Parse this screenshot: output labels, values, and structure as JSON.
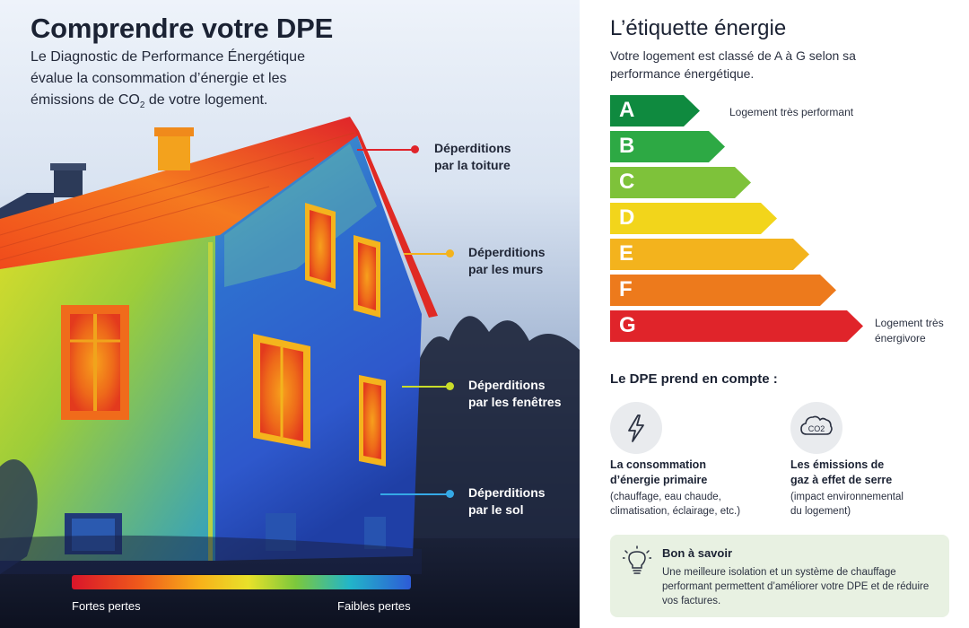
{
  "left": {
    "title": "Comprendre votre DPE",
    "intro_a": "Le Diagnostic de Performance Énergétique évalue la consommation d’énergie et les émissions de CO",
    "intro_sub": "2",
    "intro_b": " de votre logement.",
    "callouts": {
      "roof": [
        "Déperditions",
        "par la toiture"
      ],
      "walls": [
        "Déperditions",
        "par les murs"
      ],
      "windows": [
        "Déperditions",
        "par les fenêtres"
      ],
      "floor": [
        "Déperditions",
        "par le sol"
      ]
    },
    "scale": {
      "left": "Fortes pertes",
      "right": "Faibles pertes"
    }
  },
  "right": {
    "title": "L’étiquette énergie",
    "intro": "Votre logement est classé de A à G selon sa performance énergétique.",
    "classes": [
      {
        "letter": "A",
        "color": "#0f8a3f"
      },
      {
        "letter": "B",
        "color": "#2da944"
      },
      {
        "letter": "C",
        "color": "#7ec23a"
      },
      {
        "letter": "D",
        "color": "#f2d51b"
      },
      {
        "letter": "E",
        "color": "#f3b31d"
      },
      {
        "letter": "F",
        "color": "#ed7a1c"
      },
      {
        "letter": "G",
        "color": "#e0242a"
      }
    ],
    "label_best": "Logement très performant",
    "label_worst": [
      "Logement très",
      "énergivore"
    ],
    "subtitle": "Le DPE prend en compte :",
    "items": [
      {
        "icon": "lightning-icon",
        "title": [
          "La consommation",
          "d’énergie primaire"
        ],
        "desc": [
          "(chauffage, eau chaude,",
          "climatisation, éclairage, etc.)"
        ]
      },
      {
        "icon": "co2-cloud-icon",
        "icon_text": "CO2",
        "title": [
          "Les émissions de",
          "gaz à effet de serre"
        ],
        "desc": [
          "(impact environnemental",
          "du logement)"
        ]
      }
    ],
    "tip": {
      "title": "Bon à savoir",
      "text": "Une meilleure isolation et un système de chauffage performant permettent d’améliorer votre DPE et de réduire vos factures."
    }
  },
  "colors": {
    "roof_dot": "#e0242a",
    "walls_dot": "#f3b31d",
    "windows_dot": "#c9dc2a",
    "floor_dot": "#35a9e6"
  }
}
